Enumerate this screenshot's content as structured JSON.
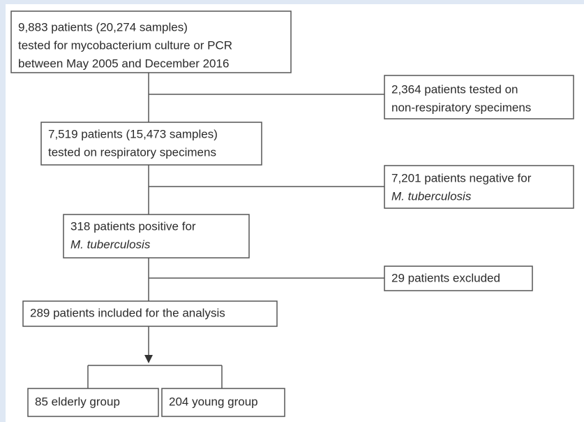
{
  "nodes": [
    {
      "lines": [
        "9,883 patients (20,274 samples)",
        "tested for mycobacterium culture or PCR",
        "between May 2005 and December 2016"
      ]
    },
    {
      "lines": [
        "2,364 patients tested on",
        "non-respiratory specimens"
      ]
    },
    {
      "lines": [
        "7,519 patients (15,473 samples)",
        "tested on respiratory specimens"
      ]
    },
    {
      "lines": [
        "7,201 patients negative for",
        "M. tuberculosis"
      ]
    },
    {
      "lines": [
        "318 patients positive for",
        "M. tuberculosis"
      ]
    },
    {
      "lines": [
        "29 patients excluded"
      ]
    },
    {
      "lines": [
        "289 patients included for the analysis"
      ]
    },
    {
      "lines": [
        "85 elderly group"
      ]
    },
    {
      "lines": [
        "204 young group"
      ]
    }
  ]
}
